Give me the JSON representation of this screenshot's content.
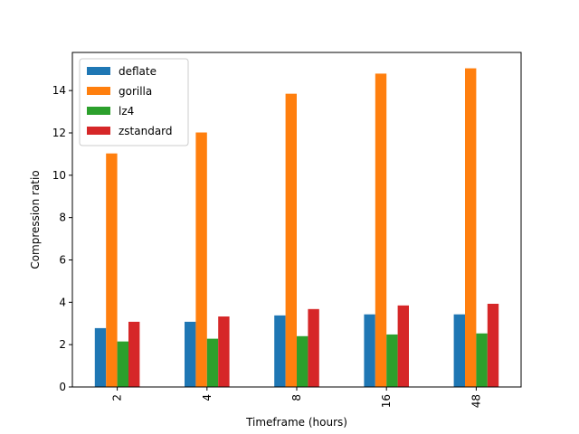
{
  "chart_data": {
    "type": "bar",
    "categories": [
      "2",
      "4",
      "8",
      "16",
      "48"
    ],
    "series": [
      {
        "name": "deflate",
        "color": "#1f77b4",
        "values": [
          2.78,
          3.08,
          3.38,
          3.43,
          3.43
        ]
      },
      {
        "name": "gorilla",
        "color": "#ff7f0e",
        "values": [
          11.03,
          12.02,
          13.85,
          14.8,
          15.05
        ]
      },
      {
        "name": "lz4",
        "color": "#2ca02c",
        "values": [
          2.15,
          2.28,
          2.4,
          2.48,
          2.53
        ]
      },
      {
        "name": "zstandard",
        "color": "#d62728",
        "values": [
          3.08,
          3.33,
          3.68,
          3.85,
          3.93
        ]
      }
    ],
    "title": "",
    "xlabel": "Timeframe (hours)",
    "ylabel": "Compression ratio",
    "ylim": [
      0,
      15.8
    ],
    "yticks": [
      "0",
      "2",
      "4",
      "6",
      "8",
      "10",
      "12",
      "14"
    ],
    "grid": false,
    "legend_position": "top-left"
  }
}
